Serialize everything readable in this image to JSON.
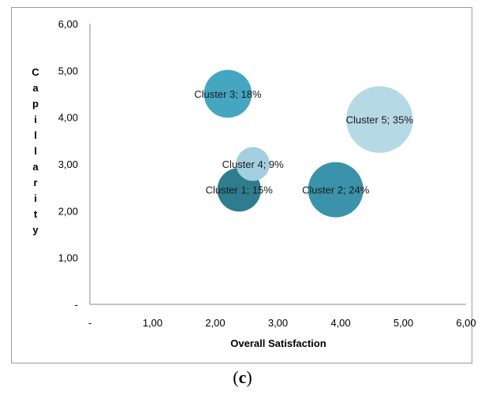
{
  "chart_data": {
    "type": "bubble",
    "title": "",
    "xlabel": "Overall Satisfaction",
    "ylabel": "Capillarity",
    "xlim": [
      0,
      6
    ],
    "ylim": [
      0,
      6
    ],
    "x_ticks": [
      "-",
      "1,00",
      "2,00",
      "3,00",
      "4,00",
      "5,00",
      "6,00"
    ],
    "y_ticks": [
      "-",
      "1,00",
      "2,00",
      "3,00",
      "4,00",
      "5,00",
      "6,00"
    ],
    "grid": false,
    "bubbles": [
      {
        "label": "Cluster 1; 15%",
        "x": 2.38,
        "y": 2.45,
        "size": 15,
        "color": "#2e7c8e"
      },
      {
        "label": "Cluster 2; 24%",
        "x": 3.92,
        "y": 2.45,
        "size": 24,
        "color": "#3a93aa"
      },
      {
        "label": "Cluster 3; 18%",
        "x": 2.2,
        "y": 4.5,
        "size": 18,
        "color": "#45a6c2"
      },
      {
        "label": "Cluster 4; 9%",
        "x": 2.6,
        "y": 3.0,
        "size": 9,
        "color": "#a4cfe0"
      },
      {
        "label": "Cluster 5; 35%",
        "x": 4.62,
        "y": 3.95,
        "size": 35,
        "color": "#b6d9e6"
      }
    ]
  },
  "caption": {
    "open": "(",
    "letter": "c",
    "close": ")"
  }
}
